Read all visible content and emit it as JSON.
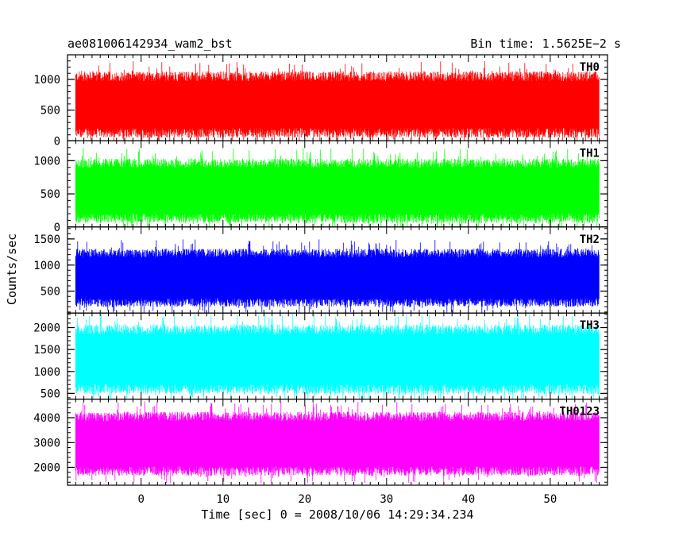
{
  "header": {
    "title": "ae081006142934_wam2_bst",
    "bin_time": "Bin time: 1.5625E−2 s"
  },
  "chart_data": {
    "type": "line",
    "xlabel": "Time [sec] 0 = 2008/10/06 14:29:34.234",
    "ylabel": "Counts/sec",
    "xlim": [
      -9,
      57
    ],
    "x_ticks": [
      0,
      10,
      20,
      30,
      40,
      50
    ],
    "data_x_range": [
      -8,
      56
    ],
    "grid": false,
    "panels": [
      {
        "name": "TH0",
        "color": "#ff0000",
        "ylim": [
          0,
          1400
        ],
        "y_ticks": [
          0,
          500,
          1000
        ],
        "typical_range": [
          130,
          1050
        ],
        "min": 0,
        "max": 1400
      },
      {
        "name": "TH1",
        "color": "#00ff00",
        "ylim": [
          0,
          1300
        ],
        "y_ticks": [
          0,
          500,
          1000
        ],
        "typical_range": [
          130,
          960
        ],
        "min": 0,
        "max": 1300
      },
      {
        "name": "TH2",
        "color": "#0000ff",
        "ylim": [
          80,
          1730
        ],
        "y_ticks": [
          500,
          1000,
          1500
        ],
        "typical_range": [
          280,
          1230
        ],
        "min": 80,
        "max": 1730
      },
      {
        "name": "TH3",
        "color": "#00ffff",
        "ylim": [
          370,
          2330
        ],
        "y_ticks": [
          500,
          1000,
          1500,
          2000
        ],
        "typical_range": [
          600,
          1950
        ],
        "min": 370,
        "max": 2330
      },
      {
        "name": "TH0123",
        "color": "#ff00ff",
        "ylim": [
          1280,
          4750
        ],
        "y_ticks": [
          2000,
          3000,
          4000
        ],
        "typical_range": [
          1850,
          4050
        ],
        "min": 1280,
        "max": 4750
      }
    ]
  }
}
